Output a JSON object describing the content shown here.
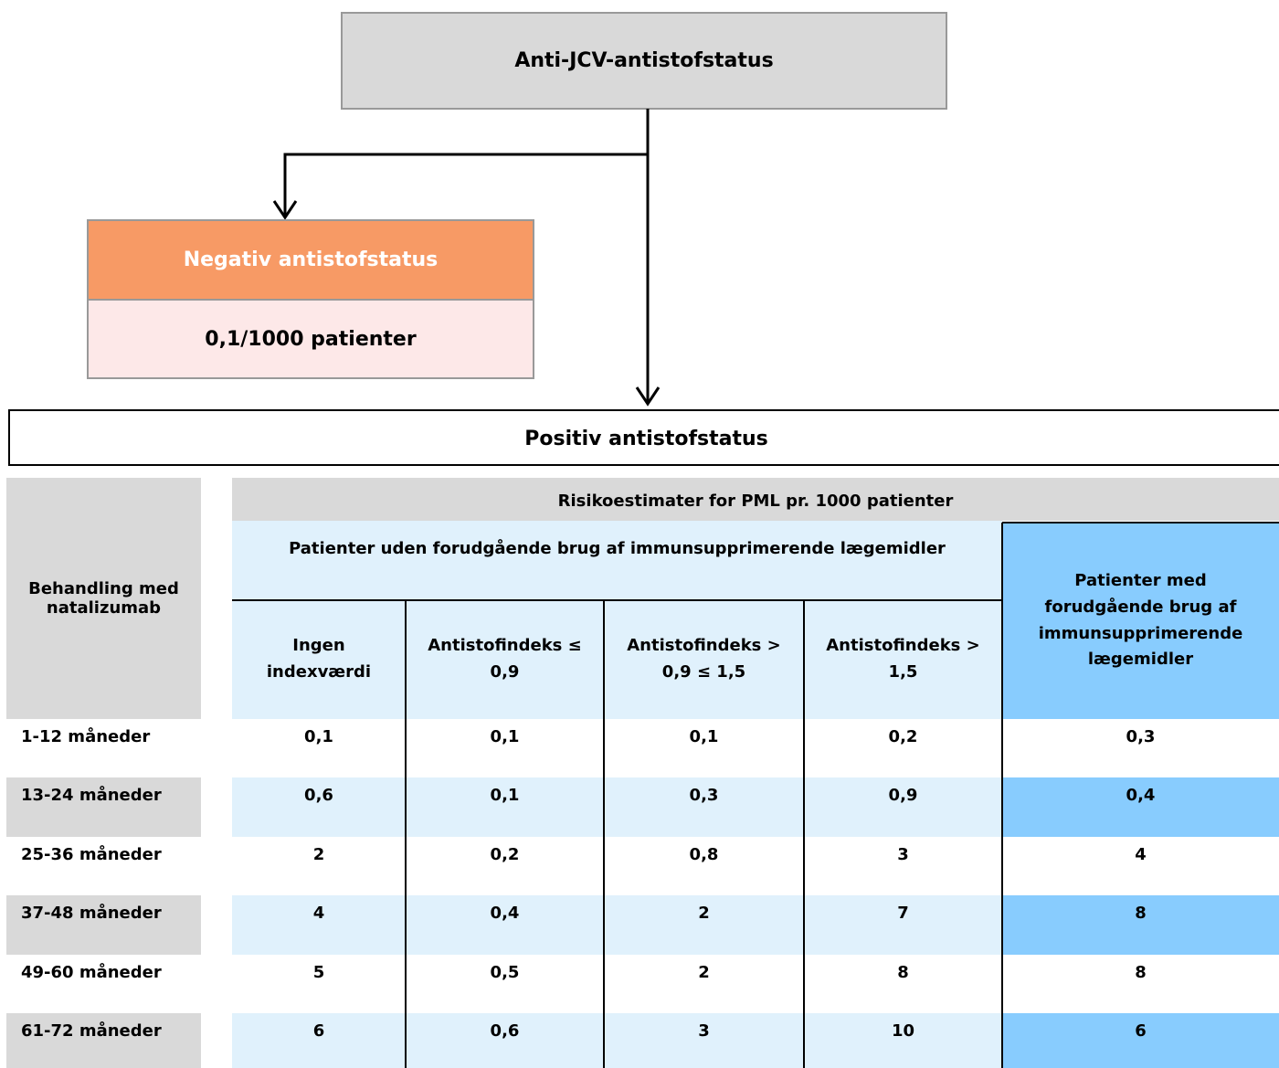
{
  "top": {
    "title": "Anti-JCV-antistofstatus"
  },
  "negative": {
    "title": "Negativ antistofstatus",
    "value": "0,1/1000 patienter"
  },
  "positive": {
    "title": "Positiv antistofstatus"
  },
  "table": {
    "row_header": "Behandling med natalizumab",
    "group_header": "Risikoestimater for PML pr. 1000 patienter",
    "subgroup_header": "Patienter uden forudgående brug af immunsupprimerende lægemidler",
    "columns": [
      "Ingen indexværdi",
      "Antistofindeks ≤ 0,9",
      "Antistofindeks > 0,9 ≤ 1,5",
      "Antistofindeks > 1,5",
      "Patienter med forudgående brug af immunsupprimerende lægemidler"
    ],
    "rows": [
      [
        "1-12 måneder",
        "0,1",
        "0,1",
        "0,1",
        "0,2",
        "0,3"
      ],
      [
        "13-24 måneder",
        "0,6",
        "0,1",
        "0,3",
        "0,9",
        "0,4"
      ],
      [
        "25-36 måneder",
        "2",
        "0,2",
        "0,8",
        "3",
        "4"
      ],
      [
        "37-48 måneder",
        "4",
        "0,4",
        "2",
        "7",
        "8"
      ],
      [
        "49-60 måneder",
        "5",
        "0,5",
        "2",
        "8",
        "8"
      ],
      [
        "61-72 måneder",
        "6",
        "0,6",
        "3",
        "10",
        "6"
      ]
    ]
  }
}
